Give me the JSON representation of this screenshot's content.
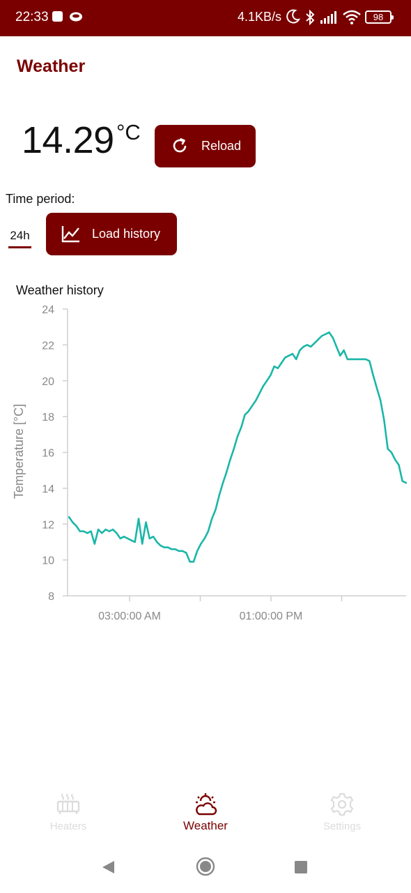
{
  "status_bar": {
    "time": "22:33",
    "net_speed": "4.1KB/s",
    "battery": "98",
    "icons": [
      "square-notification-icon",
      "cloud-notification-icon",
      "moon-icon",
      "bluetooth-icon",
      "signal-icon",
      "wifi-icon",
      "battery-icon"
    ]
  },
  "app": {
    "title": "Weather"
  },
  "current": {
    "value": "14.29",
    "unit": "°C"
  },
  "reload": {
    "label": "Reload",
    "icon": "refresh-icon"
  },
  "history": {
    "period_label": "Time period:",
    "period_value": "24h",
    "load_label": "Load history",
    "load_icon": "line-chart-icon"
  },
  "chart_data": {
    "type": "line",
    "title": "Weather history",
    "ylabel": "Temperature [°C]",
    "xlabel": "",
    "ylim": [
      8,
      24
    ],
    "yticks": [
      8,
      10,
      12,
      14,
      16,
      18,
      20,
      22,
      24
    ],
    "x_tick_labels": [
      "03:00:00 AM",
      "01:00:00 PM"
    ],
    "grid": false,
    "color": "#1bb6a8",
    "series": [
      {
        "values": [
          12.4,
          12.1,
          11.9,
          11.6,
          11.6,
          11.5,
          11.6,
          10.9,
          11.7,
          11.5,
          11.7,
          11.6,
          11.7,
          11.5,
          11.2,
          11.3,
          11.2,
          11.1,
          11.0,
          12.3,
          10.9,
          12.1,
          11.2,
          11.3,
          11.0,
          10.8,
          10.7,
          10.7,
          10.6,
          10.6,
          10.5,
          10.5,
          10.4,
          9.9,
          9.9,
          10.5,
          10.9,
          11.2,
          11.6,
          12.3,
          12.8,
          13.6,
          14.3,
          14.9,
          15.6,
          16.2,
          16.9,
          17.4,
          18.1,
          18.3,
          18.6,
          18.9,
          19.3,
          19.7,
          20.0,
          20.3,
          20.8,
          20.7,
          21.0,
          21.3,
          21.4,
          21.5,
          21.2,
          21.7,
          21.9,
          22.0,
          21.9,
          22.1,
          22.3,
          22.5,
          22.6,
          22.7,
          22.4,
          21.9,
          21.4,
          21.7,
          21.2,
          21.2,
          21.2,
          21.2,
          21.2,
          21.2,
          21.1,
          20.3,
          19.6,
          18.9,
          17.8,
          16.2,
          16.0,
          15.6,
          15.3,
          14.4,
          14.3
        ]
      }
    ]
  },
  "nav": {
    "heaters": {
      "label": "Heaters",
      "icon": "heater-icon"
    },
    "weather": {
      "label": "Weather",
      "icon": "weather-cloud-sun-icon"
    },
    "settings": {
      "label": "Settings",
      "icon": "gear-icon"
    }
  },
  "system_nav": {
    "icons": [
      "back-icon",
      "home-icon",
      "recents-icon"
    ]
  }
}
